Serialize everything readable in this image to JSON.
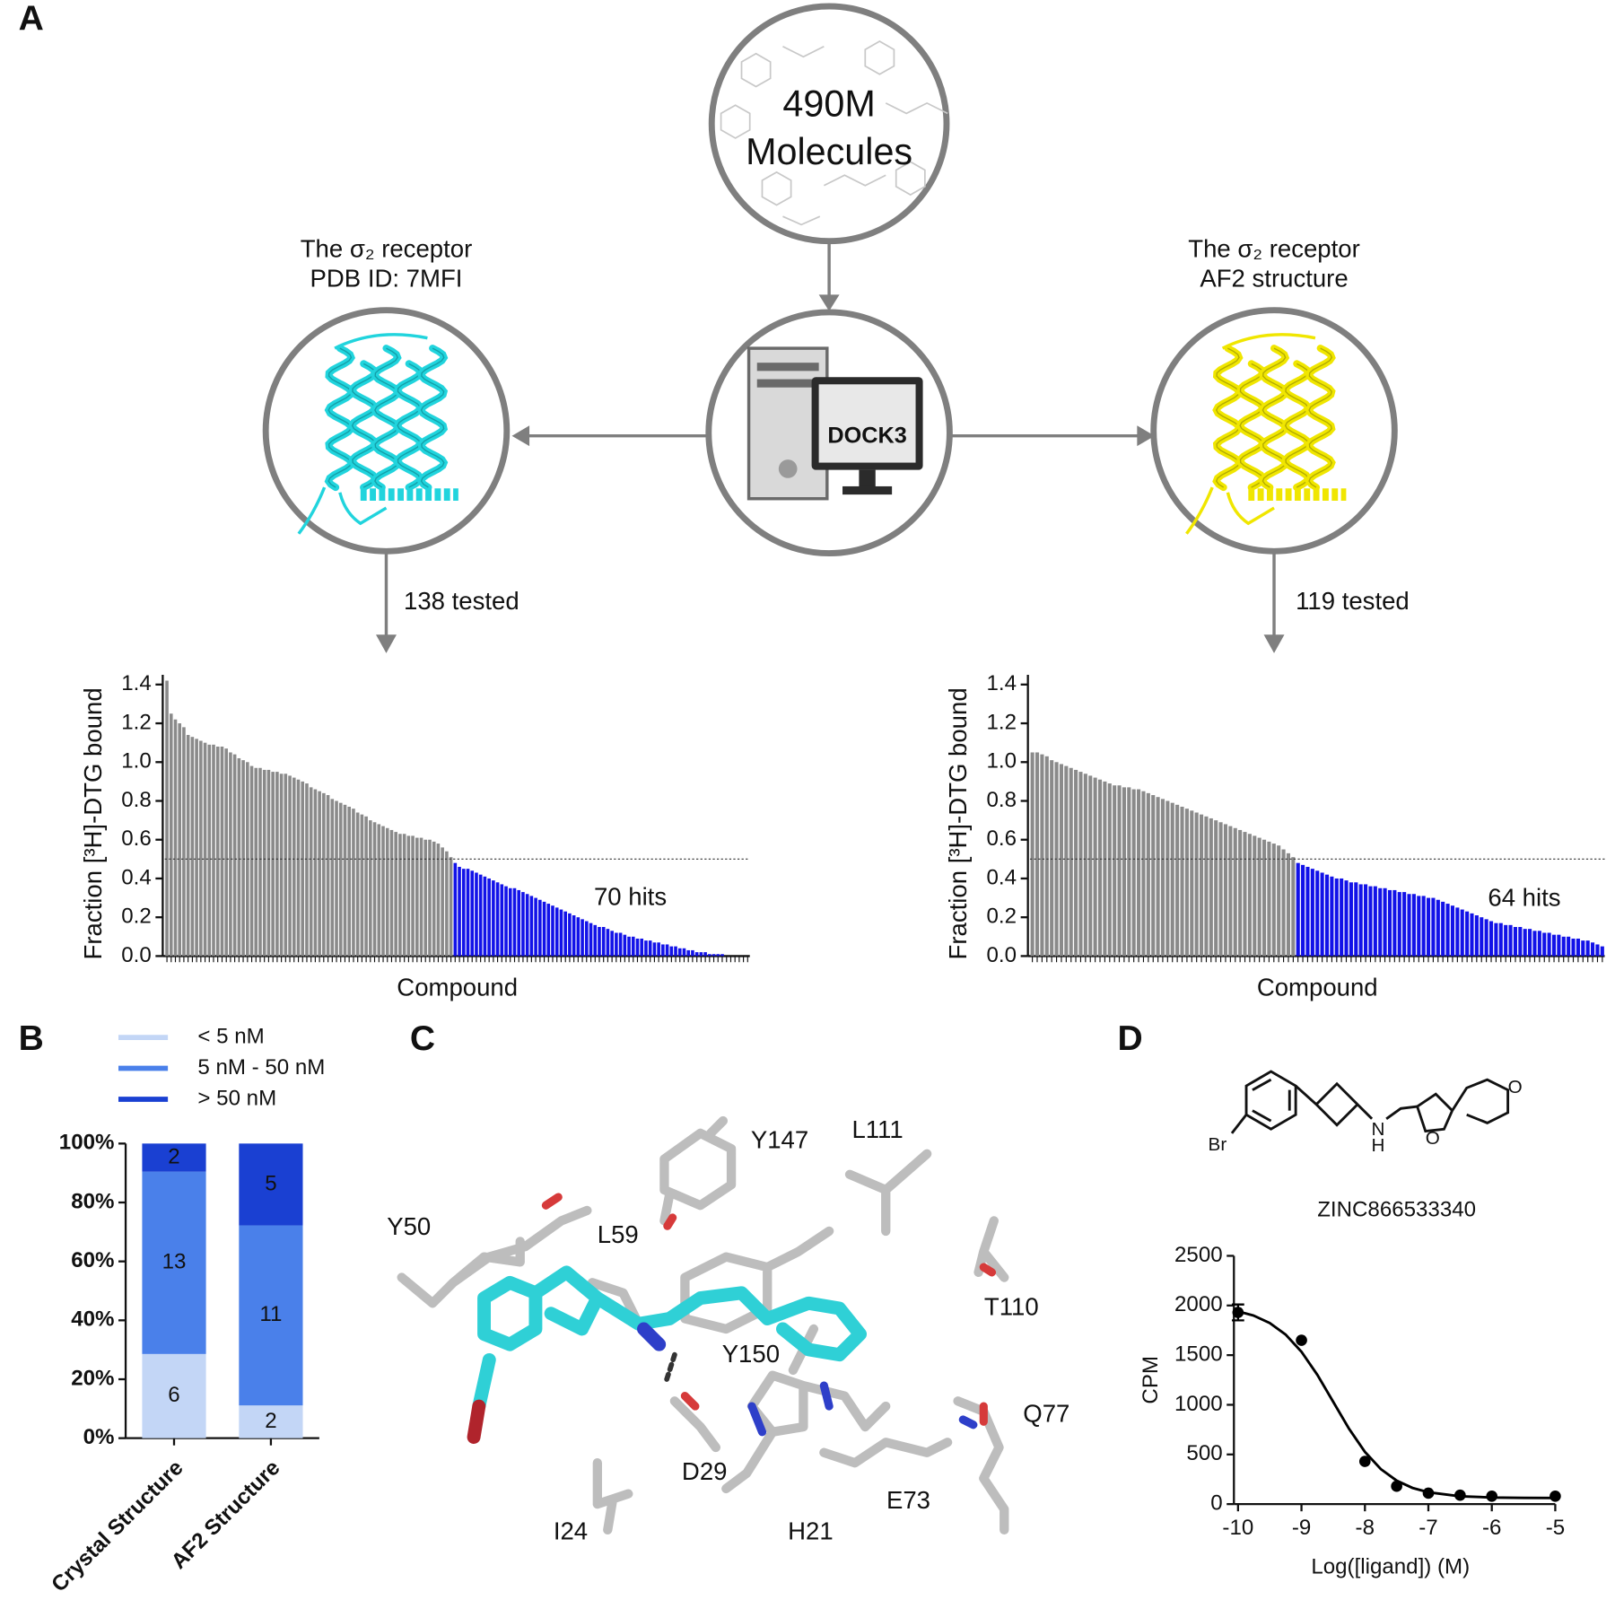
{
  "panel_labels": [
    "A",
    "B",
    "C",
    "D"
  ],
  "diagram": {
    "library": [
      "490M",
      "Molecules"
    ],
    "program": "DOCK3",
    "left_title": [
      "The σ₂ receptor",
      "PDB ID: 7MFI"
    ],
    "right_title": [
      "The σ₂ receptor",
      "AF2 structure"
    ],
    "left_tested": "138 tested",
    "right_tested": "119 tested"
  },
  "structure": {
    "residues": [
      "Y147",
      "L111",
      "Y50",
      "L59",
      "T110",
      "Y150",
      "Q77",
      "D29",
      "E73",
      "I24",
      "H21"
    ]
  },
  "molecule": {
    "atoms": [
      "Br",
      "N",
      "H",
      "O",
      "O"
    ]
  },
  "chart_data": [
    {
      "type": "bar",
      "annotation": "70 hits",
      "xlabel": "Compound",
      "ylabel": "Fraction [³H]-DTG bound",
      "ylim": [
        0,
        1.45
      ],
      "yticks": [
        {
          "value": 0,
          "label": "0.0"
        },
        {
          "value": 0.2,
          "label": "0.2"
        },
        {
          "value": 0.4,
          "label": "0.4"
        },
        {
          "value": 0.6,
          "label": "0.6"
        },
        {
          "value": 0.8,
          "label": "0.8"
        },
        {
          "value": 1,
          "label": "1.0"
        },
        {
          "value": 1.2,
          "label": "1.2"
        },
        {
          "value": 1.4,
          "label": "1.4"
        }
      ],
      "threshold": 0.5,
      "color": "#8a8a8a",
      "hit_color": "#1212e8",
      "values": [
        1.42,
        1.25,
        1.22,
        1.2,
        1.18,
        1.14,
        1.13,
        1.12,
        1.11,
        1.1,
        1.09,
        1.09,
        1.08,
        1.08,
        1.07,
        1.05,
        1.04,
        1.02,
        1.01,
        1.0,
        0.98,
        0.97,
        0.97,
        0.96,
        0.96,
        0.95,
        0.95,
        0.94,
        0.94,
        0.93,
        0.92,
        0.91,
        0.9,
        0.89,
        0.87,
        0.86,
        0.85,
        0.84,
        0.83,
        0.81,
        0.8,
        0.79,
        0.78,
        0.77,
        0.76,
        0.74,
        0.73,
        0.72,
        0.7,
        0.69,
        0.68,
        0.67,
        0.66,
        0.65,
        0.64,
        0.63,
        0.63,
        0.62,
        0.62,
        0.61,
        0.61,
        0.6,
        0.6,
        0.59,
        0.58,
        0.56,
        0.54,
        0.51,
        0.48,
        0.46,
        0.45,
        0.45,
        0.44,
        0.43,
        0.42,
        0.41,
        0.4,
        0.39,
        0.38,
        0.37,
        0.36,
        0.35,
        0.35,
        0.34,
        0.33,
        0.32,
        0.31,
        0.3,
        0.29,
        0.28,
        0.27,
        0.26,
        0.25,
        0.24,
        0.23,
        0.22,
        0.21,
        0.2,
        0.19,
        0.18,
        0.17,
        0.16,
        0.15,
        0.15,
        0.14,
        0.13,
        0.12,
        0.12,
        0.11,
        0.1,
        0.1,
        0.09,
        0.09,
        0.08,
        0.08,
        0.07,
        0.07,
        0.06,
        0.06,
        0.05,
        0.05,
        0.04,
        0.04,
        0.03,
        0.03,
        0.02,
        0.02,
        0.02,
        0.01,
        0.01,
        0.01,
        0.01,
        0,
        0,
        0,
        0,
        0,
        0
      ]
    },
    {
      "type": "bar",
      "annotation": "64 hits",
      "xlabel": "Compound",
      "ylabel": "Fraction [³H]-DTG bound",
      "ylim": [
        0,
        1.45
      ],
      "yticks": [
        {
          "value": 0,
          "label": "0.0"
        },
        {
          "value": 0.2,
          "label": "0.2"
        },
        {
          "value": 0.4,
          "label": "0.4"
        },
        {
          "value": 0.6,
          "label": "0.6"
        },
        {
          "value": 0.8,
          "label": "0.8"
        },
        {
          "value": 1,
          "label": "1.0"
        },
        {
          "value": 1.2,
          "label": "1.2"
        },
        {
          "value": 1.4,
          "label": "1.4"
        }
      ],
      "threshold": 0.5,
      "color": "#8a8a8a",
      "hit_color": "#1212e8",
      "values": [
        1.05,
        1.05,
        1.04,
        1.03,
        1.01,
        1.0,
        0.99,
        0.98,
        0.97,
        0.96,
        0.95,
        0.94,
        0.93,
        0.92,
        0.91,
        0.9,
        0.89,
        0.88,
        0.88,
        0.87,
        0.87,
        0.86,
        0.86,
        0.85,
        0.84,
        0.83,
        0.82,
        0.81,
        0.8,
        0.79,
        0.78,
        0.77,
        0.76,
        0.75,
        0.74,
        0.73,
        0.72,
        0.71,
        0.7,
        0.69,
        0.68,
        0.67,
        0.66,
        0.65,
        0.64,
        0.63,
        0.62,
        0.61,
        0.6,
        0.59,
        0.58,
        0.57,
        0.55,
        0.53,
        0.51,
        0.48,
        0.47,
        0.46,
        0.45,
        0.44,
        0.43,
        0.42,
        0.41,
        0.4,
        0.4,
        0.39,
        0.38,
        0.38,
        0.37,
        0.37,
        0.36,
        0.36,
        0.35,
        0.35,
        0.34,
        0.34,
        0.33,
        0.33,
        0.32,
        0.32,
        0.31,
        0.31,
        0.3,
        0.3,
        0.29,
        0.28,
        0.27,
        0.26,
        0.25,
        0.24,
        0.23,
        0.22,
        0.21,
        0.2,
        0.19,
        0.18,
        0.17,
        0.17,
        0.16,
        0.16,
        0.15,
        0.15,
        0.14,
        0.14,
        0.13,
        0.13,
        0.12,
        0.12,
        0.11,
        0.11,
        0.1,
        0.1,
        0.09,
        0.09,
        0.08,
        0.08,
        0.07,
        0.06,
        0.05
      ]
    },
    {
      "type": "stacked_bar",
      "stacking": "percent",
      "legend": "top",
      "categories": [
        "Crystal Structure",
        "AF2 Structure"
      ],
      "series": [
        {
          "name": "< 5 nM",
          "color": "#c3d6f6",
          "values": [
            6,
            2
          ]
        },
        {
          "name": "5 nM - 50 nM",
          "color": "#4a80ea",
          "values": [
            13,
            11
          ]
        },
        {
          "name": "> 50 nM",
          "color": "#1a40d2",
          "values": [
            2,
            5
          ]
        }
      ],
      "ylim": [
        0,
        100
      ],
      "yticks": [
        {
          "value": 0,
          "label": "0%"
        },
        {
          "value": 20,
          "label": "20%"
        },
        {
          "value": 40,
          "label": "40%"
        },
        {
          "value": 60,
          "label": "60%"
        },
        {
          "value": 80,
          "label": "80%"
        },
        {
          "value": 100,
          "label": "100%"
        }
      ]
    },
    {
      "type": "scatter",
      "title": "ZINC866533340",
      "xlabel": "Log([ligand]) (M)",
      "ylabel": "CPM",
      "color": "#000000",
      "x": [
        -10,
        -9,
        -8,
        -7.5,
        -7,
        -6.5,
        -6,
        -5
      ],
      "values": [
        1930,
        1650,
        430,
        180,
        110,
        90,
        80,
        80
      ],
      "errors": [
        80,
        null,
        null,
        null,
        null,
        null,
        null,
        null
      ],
      "fit": {
        "x": [
          -10,
          -9.75,
          -9.5,
          -9.25,
          -9,
          -8.75,
          -8.5,
          -8.25,
          -8,
          -7.75,
          -7.5,
          -7.25,
          -7,
          -6.5,
          -6,
          -5.5,
          -5
        ],
        "y": [
          1941,
          1897,
          1824,
          1707,
          1534,
          1302,
          1030,
          758,
          526,
          353,
          236,
          163,
          119,
          79,
          66,
          62,
          61
        ]
      },
      "xlim": [
        -10,
        -5
      ],
      "ylim": [
        0,
        2500
      ],
      "xticks": [
        -10,
        -9,
        -8,
        -7,
        -6,
        -5
      ],
      "yticks": [
        0,
        500,
        1000,
        1500,
        2000,
        2500
      ]
    }
  ]
}
